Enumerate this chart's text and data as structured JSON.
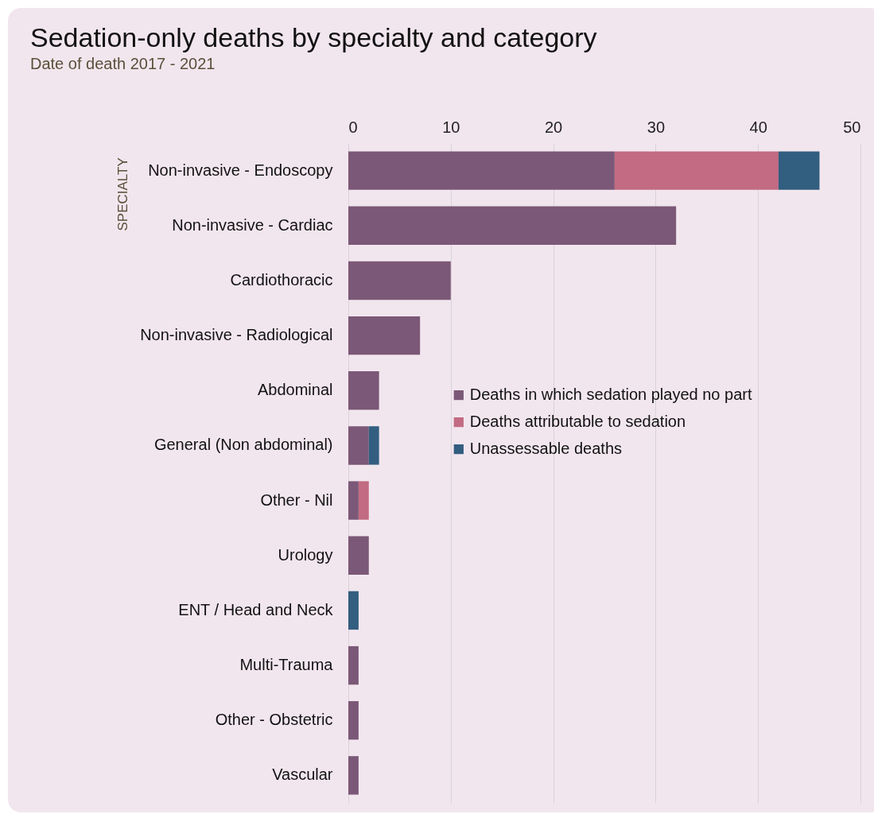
{
  "chart_data": {
    "type": "bar",
    "orientation": "horizontal",
    "stacked": true,
    "title": "Sedation-only deaths by specialty and category",
    "subtitle": "Date of death 2017 - 2021",
    "ylabel": "SPECIALTY",
    "categories": [
      "Non-invasive - Endoscopy",
      "Non-invasive - Cardiac",
      "Cardiothoracic",
      "Non-invasive - Radiological",
      "Abdominal",
      "General (Non abdominal)",
      "Other - Nil",
      "Urology",
      "ENT / Head and Neck",
      "Multi-Trauma",
      "Other - Obstetric",
      "Vascular"
    ],
    "series": [
      {
        "name": "Deaths in which sedation played no part",
        "color": "#7b5877",
        "values": [
          26,
          32,
          10,
          7,
          3,
          2,
          1,
          2,
          0,
          1,
          1,
          1
        ]
      },
      {
        "name": "Deaths attributable to sedation",
        "color": "#c26b82",
        "values": [
          16,
          0,
          0,
          0,
          0,
          0,
          1,
          0,
          0,
          0,
          0,
          0
        ]
      },
      {
        "name": "Unassessable deaths",
        "color": "#325e80",
        "values": [
          4,
          0,
          0,
          0,
          0,
          1,
          0,
          0,
          1,
          0,
          0,
          0
        ]
      }
    ],
    "xlim": [
      0,
      50
    ],
    "xticks": [
      0,
      10,
      20,
      30,
      40,
      50
    ],
    "grid": "x",
    "legend": "right"
  }
}
